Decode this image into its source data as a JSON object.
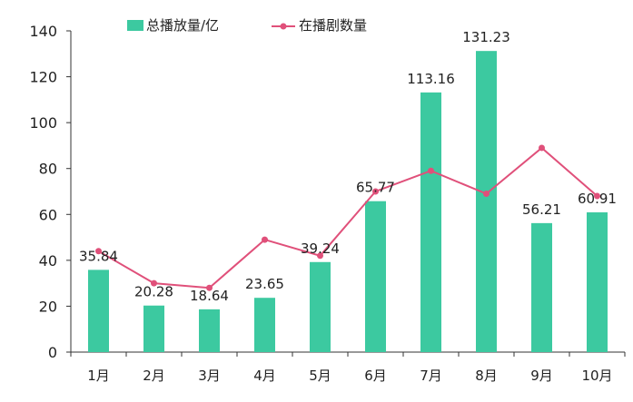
{
  "chart_data": {
    "type": "bar",
    "categories": [
      "1月",
      "2月",
      "3月",
      "4月",
      "5月",
      "6月",
      "7月",
      "8月",
      "9月",
      "10月"
    ],
    "series": [
      {
        "name": "总播放量/亿",
        "type": "bar",
        "color": "#3cc9a0",
        "values": [
          35.84,
          20.28,
          18.64,
          23.65,
          39.24,
          65.77,
          113.16,
          131.23,
          56.21,
          60.91
        ],
        "labels": [
          "35.84",
          "20.28",
          "18.64",
          "23.65",
          "39.24",
          "65.77",
          "113.16",
          "131.23",
          "56.21",
          "60.91"
        ]
      },
      {
        "name": "在播剧数量",
        "type": "line",
        "color": "#e0507a",
        "values": [
          44,
          30,
          28,
          49,
          42,
          70,
          79,
          69,
          89,
          68
        ]
      }
    ],
    "ylim": [
      0,
      140
    ],
    "yticks": [
      "0",
      "20",
      "40",
      "60",
      "80",
      "100",
      "120",
      "140"
    ],
    "legend_position": "top",
    "grid": false
  }
}
